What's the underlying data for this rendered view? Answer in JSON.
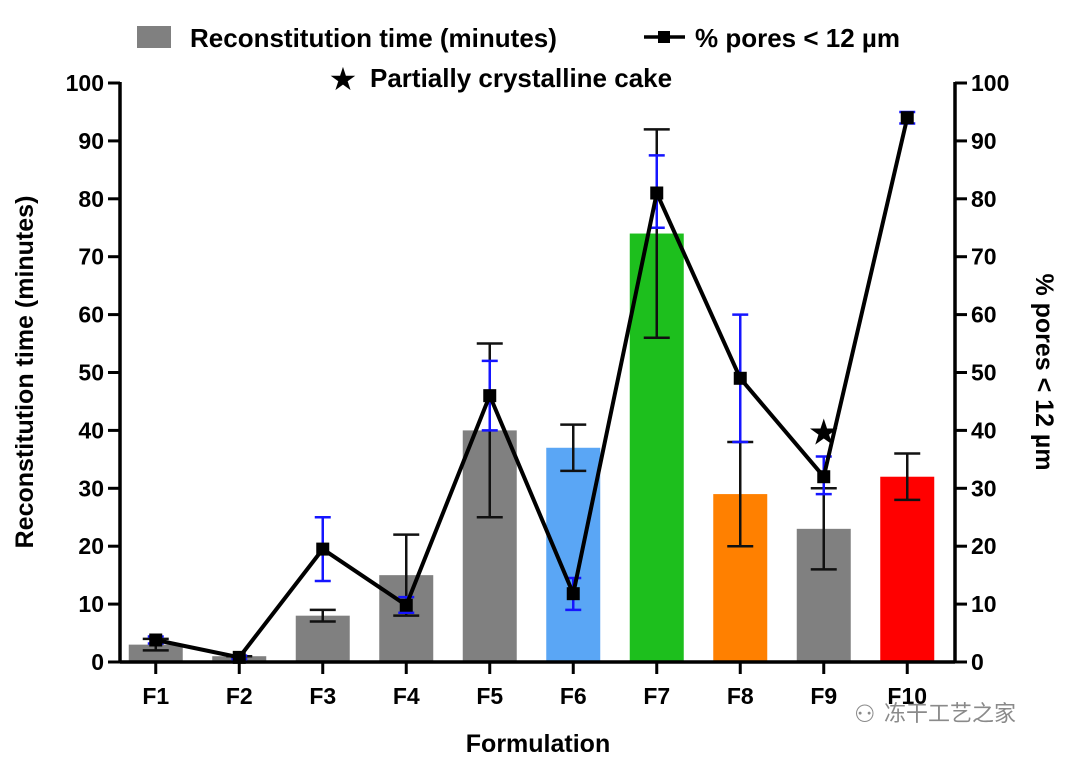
{
  "chart_data": {
    "type": "bar",
    "categories": [
      "F1",
      "F2",
      "F3",
      "F4",
      "F5",
      "F6",
      "F7",
      "F8",
      "F9",
      "F10"
    ],
    "xlabel": "Formulation",
    "ylabel": "Reconstitution time (minutes)",
    "y2label": "% pores < 12 µm",
    "ylim": [
      0,
      100
    ],
    "y2lim": [
      0,
      100
    ],
    "yticks": [
      "0",
      "10",
      "20",
      "30",
      "40",
      "50",
      "60",
      "70",
      "80",
      "90",
      "100"
    ],
    "y2ticks": [
      "0",
      "10",
      "20",
      "30",
      "40",
      "50",
      "60",
      "70",
      "80",
      "90",
      "100"
    ],
    "grid": false,
    "series": [
      {
        "name": "Reconstitution time (minutes)",
        "type": "bar",
        "values": [
          3,
          1,
          8,
          15,
          40,
          37,
          74,
          29,
          23,
          32
        ],
        "error_low": [
          2,
          0,
          7,
          8,
          25,
          33,
          56,
          20,
          16,
          28
        ],
        "error_high": [
          4,
          1,
          9,
          22,
          55,
          41,
          92,
          38,
          30,
          36
        ],
        "colors": [
          "#808080",
          "#808080",
          "#808080",
          "#808080",
          "#808080",
          "#5aa6f5",
          "#1dbf1d",
          "#ff8000",
          "#808080",
          "#ff0000"
        ]
      },
      {
        "name": "% pores < 12 µm",
        "type": "line",
        "axis": "right",
        "values": [
          3.8,
          0.8,
          19.5,
          9.8,
          46,
          11.8,
          81,
          49,
          32,
          94
        ],
        "error_low": [
          3.2,
          0.5,
          14,
          8.5,
          40,
          9,
          75,
          38,
          29,
          93
        ],
        "error_high": [
          4.4,
          1.1,
          25,
          11.2,
          52,
          14.5,
          87.5,
          60,
          35.5,
          95
        ],
        "error_color": "#1515ff"
      }
    ],
    "legend": [
      {
        "label": "Reconstitution time (minutes)",
        "symbol": "gray-box"
      },
      {
        "label": "% pores < 12 µm",
        "symbol": "line-square"
      },
      {
        "label": "Partially crystalline cake",
        "symbol": "star"
      }
    ],
    "legend_position": "top",
    "annotations": [
      {
        "category": "F9",
        "symbol": "star",
        "value": 40,
        "meaning": "Partially crystalline cake"
      }
    ],
    "watermark": "冻干工艺之家"
  }
}
